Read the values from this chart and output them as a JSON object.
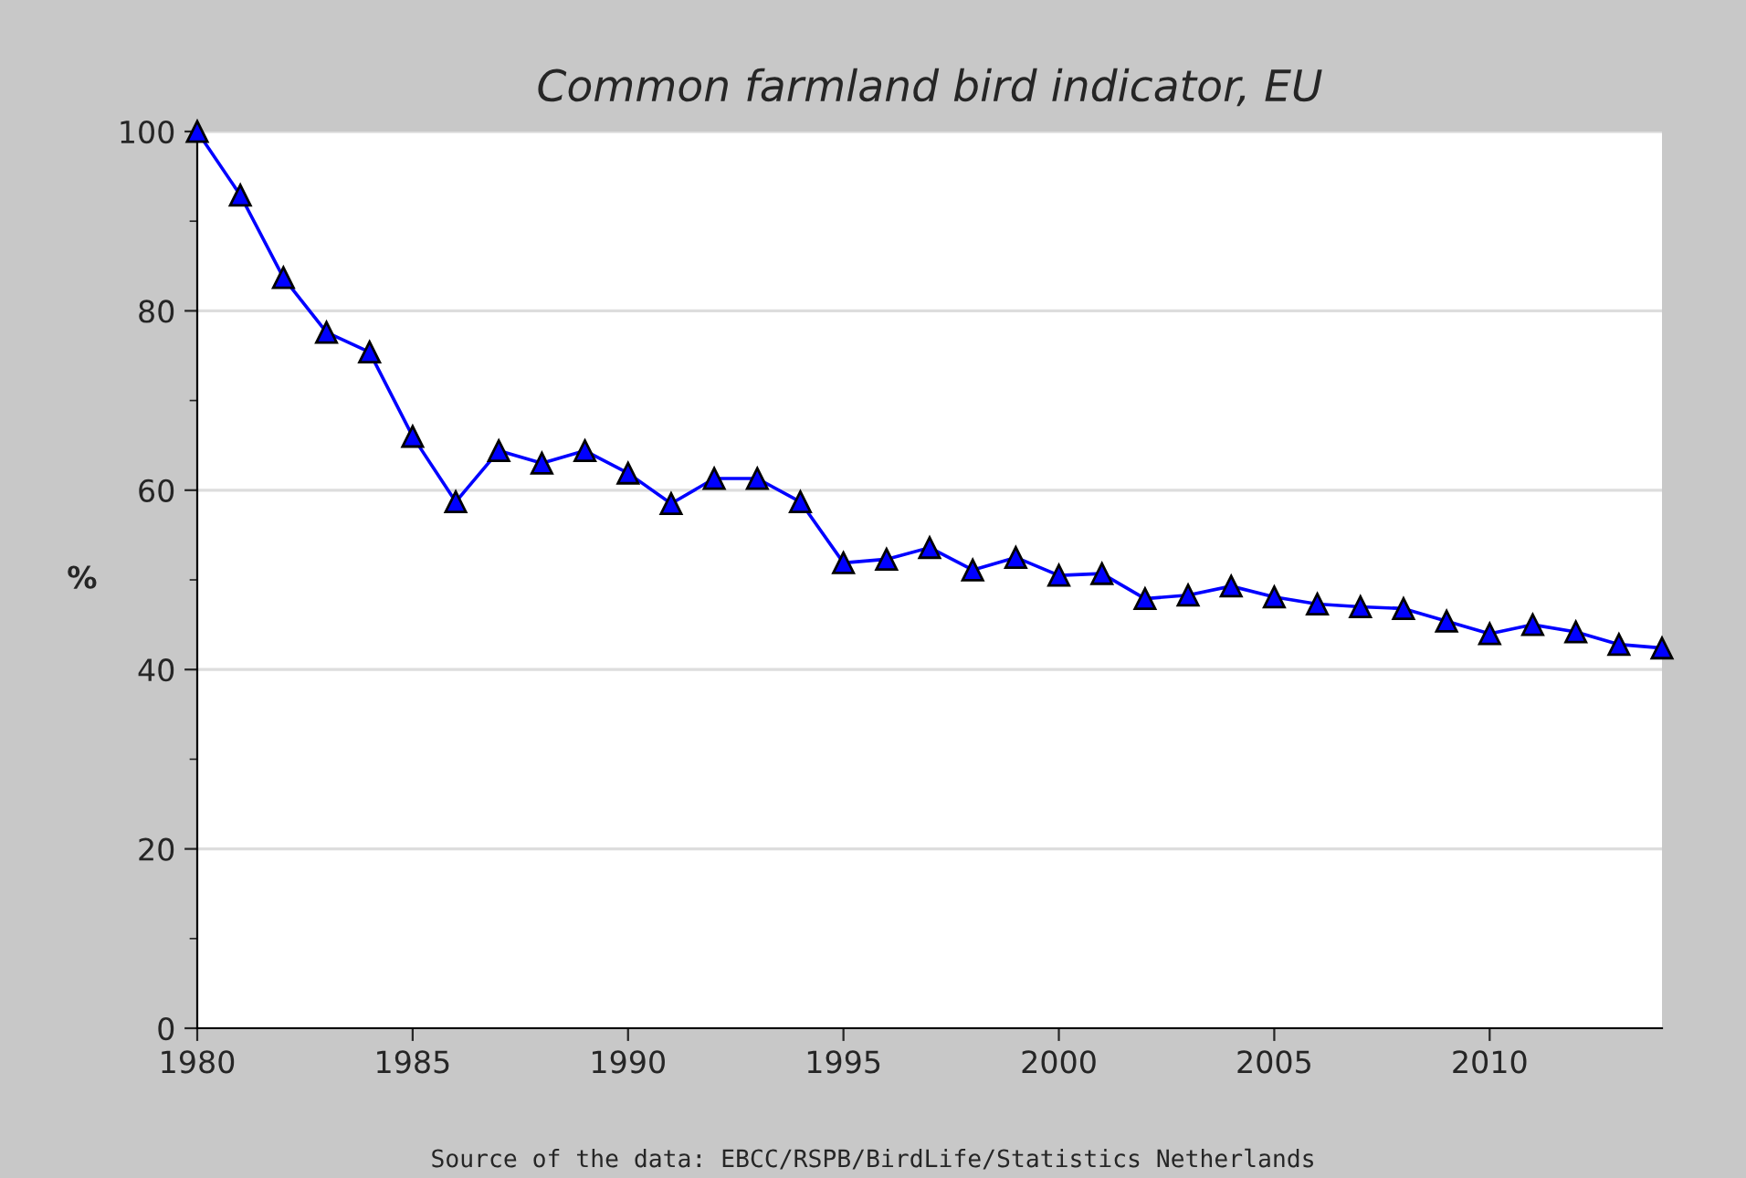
{
  "chart_data": {
    "type": "line",
    "title": "Common farmland bird indicator, EU",
    "ylabel": "%",
    "x": [
      1980,
      1981,
      1982,
      1983,
      1984,
      1985,
      1986,
      1987,
      1988,
      1989,
      1990,
      1991,
      1992,
      1993,
      1994,
      1995,
      1996,
      1997,
      1998,
      1999,
      2000,
      2001,
      2002,
      2003,
      2004,
      2005,
      2006,
      2007,
      2008,
      2009,
      2010,
      2011,
      2012,
      2013,
      2014
    ],
    "series": [
      {
        "color": "#0000ff",
        "values": [
          100,
          92.9,
          83.7,
          77.6,
          75.4,
          66.0,
          58.7,
          64.4,
          63.0,
          64.4,
          61.9,
          58.5,
          61.3,
          61.3,
          58.7,
          51.9,
          52.3,
          53.6,
          51.1,
          52.5,
          50.5,
          50.7,
          47.9,
          48.3,
          49.3,
          48.1,
          47.3,
          47.0,
          46.8,
          45.4,
          44.0,
          45.0,
          44.2,
          42.8,
          42.4
        ]
      }
    ],
    "xlim": [
      1980,
      2014
    ],
    "ylim": [
      0,
      100
    ],
    "xticks": [
      1980,
      1985,
      1990,
      1995,
      2000,
      2005,
      2010
    ],
    "yticks": [
      0,
      {
        "value": 10,
        "label": null
      },
      20,
      {
        "value": 30,
        "label": null
      },
      40,
      {
        "value": 50,
        "label": null
      },
      60,
      {
        "value": 70,
        "label": null
      },
      80,
      {
        "value": 90,
        "label": null
      },
      100
    ],
    "grid": "y",
    "marker": "triangle",
    "line_style": "solid",
    "legend": false,
    "annotations": [
      "Source of the data: EBCC/RSPB/BirdLife/Statistics Netherlands"
    ]
  }
}
